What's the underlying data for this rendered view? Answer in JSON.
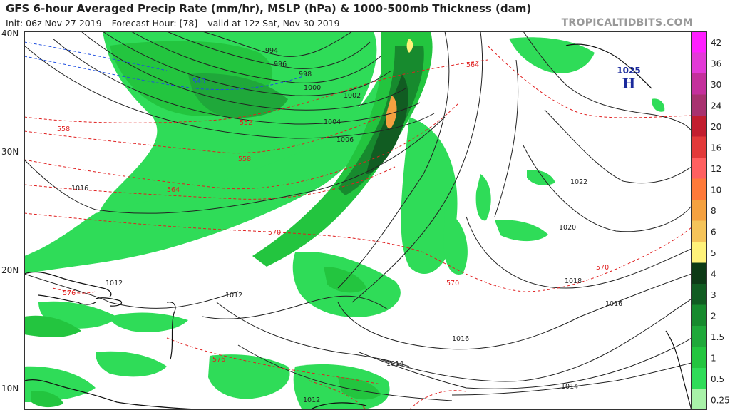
{
  "header": {
    "title": "GFS 6-hour Averaged Precip Rate (mm/hr), MSLP (hPa) & 1000-500mb Thickness (dam)",
    "init": "Init: 06z Nov 27 2019",
    "forecast_hour": "Forecast Hour: [78]",
    "valid": "valid at 12z Sat, Nov 30 2019",
    "brand": "TROPICALTIDBITS.COM"
  },
  "latitude_labels": [
    "40N",
    "30N",
    "20N",
    "10N"
  ],
  "pressure_labels": [
    "994",
    "996",
    "998",
    "1000",
    "1002",
    "1004",
    "1006",
    "1016",
    "1012",
    "1012",
    "1022",
    "1020",
    "1018",
    "1016",
    "1016",
    "1014",
    "1014",
    "1012"
  ],
  "thickness_labels": [
    "540",
    "552",
    "558",
    "558",
    "564",
    "564",
    "570",
    "570",
    "570",
    "576",
    "576"
  ],
  "high_center": {
    "value": "1025",
    "letter": "H",
    "color": "#1a2a9c"
  },
  "colorbar": {
    "labels": [
      "42",
      "36",
      "30",
      "24",
      "20",
      "16",
      "12",
      "10",
      "8",
      "6",
      "5",
      "4",
      "3",
      "2",
      "1.5",
      "1",
      "0.5",
      "0.25"
    ],
    "colors": [
      "#ff20ff",
      "#e23ad6",
      "#c4309c",
      "#a8326f",
      "#c21e2f",
      "#e23a3a",
      "#ff6060",
      "#ff7a3a",
      "#f4a140",
      "#f5c45a",
      "#fff27a",
      "#0d3a16",
      "#115c22",
      "#178a2e",
      "#1fa83a",
      "#23c53f",
      "#2fdc58",
      "#a8f2a8"
    ]
  }
}
